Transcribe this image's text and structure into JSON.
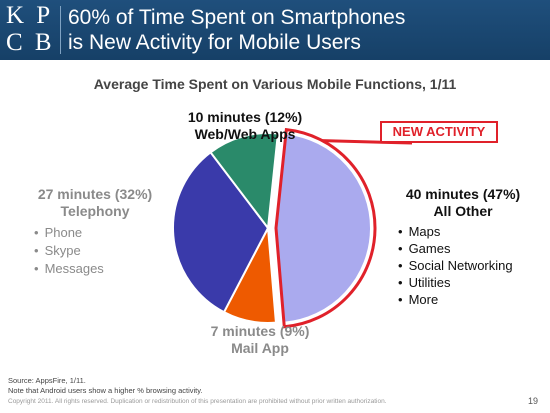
{
  "header": {
    "logo_line1": "KPCB",
    "logo_line1_display": "K P",
    "logo_line2_display": "C B",
    "title_line1": "60% of Time Spent on Smartphones",
    "title_line2": "is New Activity for Mobile Users"
  },
  "chart_data": {
    "type": "pie",
    "title": "Average Time Spent on Various Mobile Functions, 1/11",
    "slices": [
      {
        "label": "All Other",
        "minutes": 40,
        "percent": 47,
        "color": "#aaaaee",
        "highlight": true
      },
      {
        "label": "Mail App",
        "minutes": 7,
        "percent": 9,
        "color": "#ee5a00"
      },
      {
        "label": "Telephony",
        "minutes": 27,
        "percent": 32,
        "color": "#3a3aaa"
      },
      {
        "label": "Web/Web Apps",
        "minutes": 10,
        "percent": 12,
        "color": "#2a8a6a"
      }
    ],
    "labels": {
      "web": {
        "line1": "10 minutes (12%)",
        "line2": "Web/Web Apps"
      },
      "telephony": {
        "line1": "27 minutes (32%)",
        "line2": "Telephony",
        "items": [
          "Phone",
          "Skype",
          "Messages"
        ]
      },
      "mail": {
        "line1": "7 minutes (9%)",
        "line2": "Mail App"
      },
      "other": {
        "line1": "40 minutes (47%)",
        "line2": "All Other",
        "items": [
          "Maps",
          "Games",
          "Social Networking",
          "Utilities",
          "More"
        ]
      }
    },
    "callout": "NEW ACTIVITY",
    "highlight_color": "#e0212a"
  },
  "footer": {
    "source_line1": "Source: AppsFire, 1/11.",
    "source_line2": "Note that Android users show a higher % browsing activity.",
    "copyright": "Copyright 2011. All rights reserved. Duplication or redistribution of this presentation are prohibited without prior written authorization.",
    "page_number": "19"
  }
}
